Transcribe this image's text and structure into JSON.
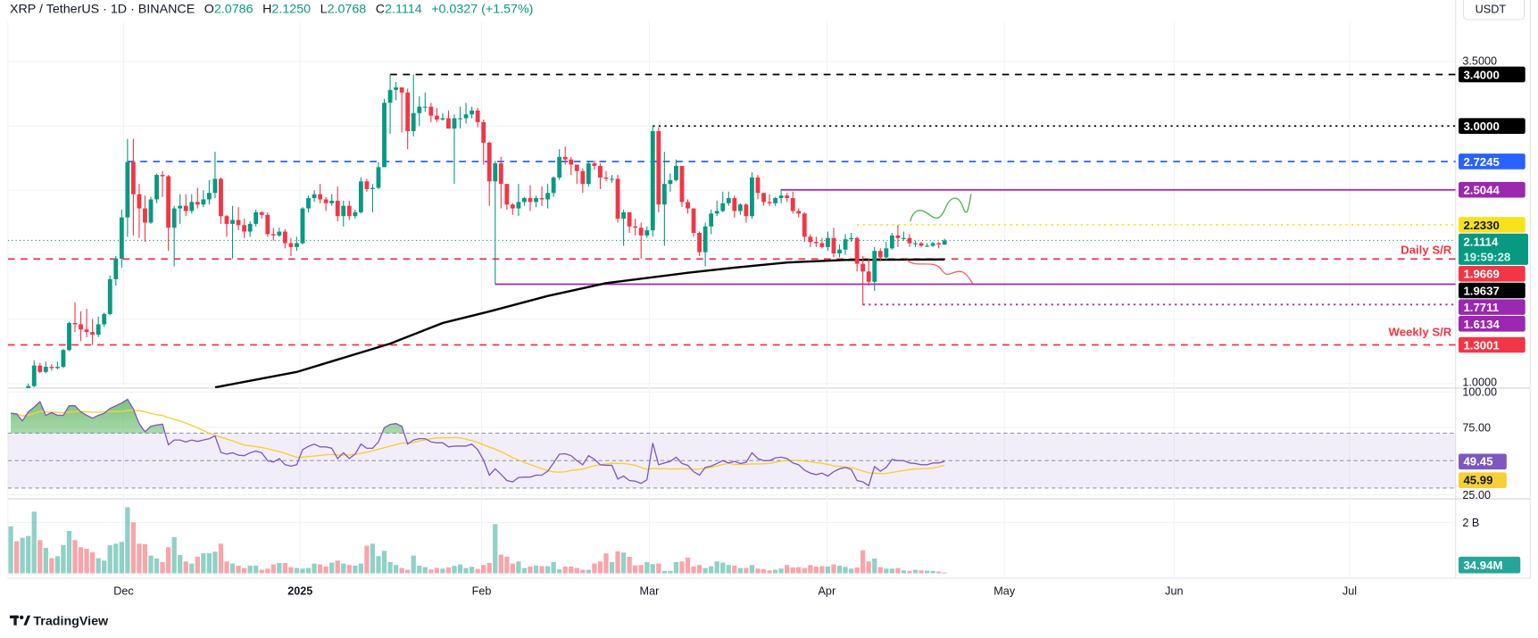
{
  "header": {
    "symbol": "XRP / TetherUS · 1D · BINANCE",
    "open_label": "O",
    "open": "2.0786",
    "high_label": "H",
    "high": "2.1250",
    "low_label": "L",
    "low": "2.0768",
    "close_label": "C",
    "close": "2.1114",
    "change": "+0.0327 (+1.57%)"
  },
  "currency_button": "USDT",
  "price_axis": {
    "top_label": "3.5000",
    "bottom_label": "1.0000"
  },
  "rsi_axis": {
    "top": "100.00",
    "upper": "75.00",
    "lower": "25.00"
  },
  "volume_axis": {
    "label": "2 B",
    "last_volume": "34.94M"
  },
  "time_axis": [
    "Dec",
    "2025",
    "Feb",
    "Mar",
    "Apr",
    "May",
    "Jun",
    "Jul"
  ],
  "annotations": {
    "daily_sr": "Daily S/R",
    "weekly_sr": "Weekly S/R"
  },
  "current_price": {
    "value": "2.1114",
    "countdown": "19:59:28",
    "color": "#089981"
  },
  "rsi_tags": {
    "rsi": "49.45",
    "rsi_ma": "45.99"
  },
  "footer": {
    "brand": "TradingView"
  },
  "colors": {
    "up": "#089981",
    "down": "#f23645",
    "rsi": "#7e57c2",
    "rsi_ma": "#f7d038",
    "sma": "#000000"
  },
  "chart_data": {
    "type": "candlestick",
    "title": "XRP / TetherUS · 1D · BINANCE",
    "ylabel": "USDT",
    "ylim": [
      1.0,
      3.5
    ],
    "x_ticks": [
      "Dec",
      "2025",
      "Feb",
      "Mar",
      "Apr",
      "May",
      "Jun",
      "Jul"
    ],
    "candles_ohlc": [
      [
        0.62,
        0.78,
        0.6,
        0.73
      ],
      [
        0.73,
        0.8,
        0.68,
        0.72
      ],
      [
        0.72,
        0.82,
        0.7,
        0.8
      ],
      [
        0.8,
        1.0,
        0.78,
        0.98
      ],
      [
        0.98,
        1.18,
        0.97,
        1.14
      ],
      [
        1.14,
        1.16,
        1.08,
        1.09
      ],
      [
        1.09,
        1.17,
        1.08,
        1.13
      ],
      [
        1.13,
        1.15,
        1.1,
        1.12
      ],
      [
        1.12,
        1.17,
        1.11,
        1.13
      ],
      [
        1.13,
        1.27,
        1.12,
        1.26
      ],
      [
        1.26,
        1.48,
        1.25,
        1.47
      ],
      [
        1.47,
        1.63,
        1.4,
        1.46
      ],
      [
        1.46,
        1.56,
        1.33,
        1.42
      ],
      [
        1.42,
        1.58,
        1.36,
        1.4
      ],
      [
        1.4,
        1.5,
        1.3,
        1.38
      ],
      [
        1.38,
        1.52,
        1.36,
        1.46
      ],
      [
        1.46,
        1.55,
        1.44,
        1.54
      ],
      [
        1.54,
        1.84,
        1.53,
        1.81
      ],
      [
        1.81,
        1.99,
        1.76,
        1.97
      ],
      [
        1.97,
        2.35,
        1.9,
        2.29
      ],
      [
        2.29,
        2.9,
        2.14,
        2.72
      ],
      [
        2.72,
        2.9,
        2.15,
        2.47
      ],
      [
        2.47,
        2.55,
        2.13,
        2.36
      ],
      [
        2.36,
        2.46,
        2.1,
        2.25
      ],
      [
        2.25,
        2.45,
        2.24,
        2.43
      ],
      [
        2.43,
        2.63,
        2.4,
        2.62
      ],
      [
        2.62,
        2.65,
        2.45,
        2.61
      ],
      [
        2.61,
        2.62,
        2.03,
        2.21
      ],
      [
        2.21,
        2.38,
        1.91,
        2.36
      ],
      [
        2.36,
        2.47,
        2.24,
        2.38
      ],
      [
        2.38,
        2.47,
        2.3,
        2.34
      ],
      [
        2.34,
        2.47,
        2.32,
        2.41
      ],
      [
        2.41,
        2.52,
        2.36,
        2.39
      ],
      [
        2.39,
        2.5,
        2.37,
        2.43
      ],
      [
        2.43,
        2.58,
        2.39,
        2.48
      ],
      [
        2.48,
        2.8,
        2.44,
        2.59
      ],
      [
        2.59,
        2.6,
        2.24,
        2.3
      ],
      [
        2.3,
        2.31,
        2.14,
        2.24
      ],
      [
        2.24,
        2.38,
        1.97,
        2.27
      ],
      [
        2.27,
        2.37,
        2.19,
        2.23
      ],
      [
        2.23,
        2.28,
        2.13,
        2.18
      ],
      [
        2.18,
        2.26,
        2.14,
        2.24
      ],
      [
        2.24,
        2.35,
        2.22,
        2.33
      ],
      [
        2.33,
        2.34,
        2.28,
        2.31
      ],
      [
        2.31,
        2.33,
        2.14,
        2.16
      ],
      [
        2.16,
        2.21,
        2.11,
        2.15
      ],
      [
        2.15,
        2.21,
        2.14,
        2.18
      ],
      [
        2.18,
        2.2,
        2.05,
        2.09
      ],
      [
        2.09,
        2.13,
        1.99,
        2.06
      ],
      [
        2.06,
        2.14,
        2.03,
        2.09
      ],
      [
        2.09,
        2.37,
        2.08,
        2.36
      ],
      [
        2.36,
        2.46,
        2.33,
        2.44
      ],
      [
        2.44,
        2.5,
        2.41,
        2.47
      ],
      [
        2.47,
        2.55,
        2.4,
        2.43
      ],
      [
        2.43,
        2.45,
        2.34,
        2.4
      ],
      [
        2.4,
        2.47,
        2.38,
        2.42
      ],
      [
        2.42,
        2.53,
        2.26,
        2.3
      ],
      [
        2.3,
        2.42,
        2.22,
        2.38
      ],
      [
        2.38,
        2.42,
        2.27,
        2.3
      ],
      [
        2.3,
        2.35,
        2.28,
        2.33
      ],
      [
        2.33,
        2.6,
        2.32,
        2.57
      ],
      [
        2.57,
        2.59,
        2.49,
        2.51
      ],
      [
        2.51,
        2.55,
        2.33,
        2.52
      ],
      [
        2.52,
        2.72,
        2.51,
        2.68
      ],
      [
        2.68,
        3.21,
        2.68,
        3.18
      ],
      [
        3.18,
        3.4,
        2.94,
        3.28
      ],
      [
        3.28,
        3.34,
        3.2,
        3.3
      ],
      [
        3.3,
        3.3,
        2.95,
        3.26
      ],
      [
        3.26,
        3.29,
        2.82,
        2.96
      ],
      [
        2.96,
        3.4,
        2.92,
        3.1
      ],
      [
        3.1,
        3.23,
        3.0,
        3.15
      ],
      [
        3.15,
        3.26,
        3.11,
        3.15
      ],
      [
        3.15,
        3.18,
        3.03,
        3.08
      ],
      [
        3.08,
        3.14,
        3.03,
        3.05
      ],
      [
        3.05,
        3.1,
        3.04,
        3.06
      ],
      [
        3.06,
        3.12,
        2.98,
        2.98
      ],
      [
        2.98,
        3.09,
        2.55,
        3.06
      ],
      [
        3.06,
        3.15,
        2.98,
        3.06
      ],
      [
        3.06,
        3.18,
        3.02,
        3.09
      ],
      [
        3.09,
        3.15,
        3.06,
        3.12
      ],
      [
        3.12,
        3.14,
        2.99,
        3.03
      ],
      [
        3.03,
        3.05,
        2.7,
        2.87
      ],
      [
        2.87,
        2.88,
        2.38,
        2.57
      ],
      [
        2.57,
        2.73,
        1.77,
        2.71
      ],
      [
        2.71,
        2.76,
        2.36,
        2.55
      ],
      [
        2.55,
        2.55,
        2.35,
        2.39
      ],
      [
        2.39,
        2.4,
        2.31,
        2.36
      ],
      [
        2.36,
        2.55,
        2.3,
        2.41
      ],
      [
        2.41,
        2.45,
        2.38,
        2.44
      ],
      [
        2.44,
        2.54,
        2.34,
        2.41
      ],
      [
        2.41,
        2.46,
        2.37,
        2.44
      ],
      [
        2.44,
        2.53,
        2.38,
        2.43
      ],
      [
        2.43,
        2.55,
        2.36,
        2.48
      ],
      [
        2.48,
        2.61,
        2.45,
        2.6
      ],
      [
        2.6,
        2.82,
        2.58,
        2.76
      ],
      [
        2.76,
        2.84,
        2.7,
        2.74
      ],
      [
        2.74,
        2.76,
        2.62,
        2.7
      ],
      [
        2.7,
        2.7,
        2.55,
        2.65
      ],
      [
        2.65,
        2.67,
        2.48,
        2.55
      ],
      [
        2.55,
        2.73,
        2.53,
        2.71
      ],
      [
        2.71,
        2.73,
        2.66,
        2.69
      ],
      [
        2.69,
        2.71,
        2.51,
        2.6
      ],
      [
        2.6,
        2.65,
        2.57,
        2.59
      ],
      [
        2.59,
        2.62,
        2.56,
        2.59
      ],
      [
        2.59,
        2.62,
        2.25,
        2.28
      ],
      [
        2.28,
        2.35,
        2.07,
        2.33
      ],
      [
        2.33,
        2.33,
        2.17,
        2.22
      ],
      [
        2.22,
        2.28,
        2.15,
        2.21
      ],
      [
        2.21,
        2.25,
        1.97,
        2.15
      ],
      [
        2.15,
        2.22,
        2.13,
        2.19
      ],
      [
        2.19,
        3.0,
        2.14,
        2.96
      ],
      [
        2.96,
        2.99,
        2.33,
        2.39
      ],
      [
        2.39,
        2.8,
        2.07,
        2.55
      ],
      [
        2.55,
        2.63,
        2.49,
        2.58
      ],
      [
        2.58,
        2.74,
        2.57,
        2.69
      ],
      [
        2.69,
        2.69,
        2.37,
        2.41
      ],
      [
        2.41,
        2.43,
        2.32,
        2.36
      ],
      [
        2.36,
        2.36,
        2.14,
        2.17
      ],
      [
        2.17,
        2.18,
        1.99,
        2.02
      ],
      [
        2.02,
        2.25,
        1.91,
        2.22
      ],
      [
        2.22,
        2.35,
        2.16,
        2.32
      ],
      [
        2.32,
        2.42,
        2.3,
        2.34
      ],
      [
        2.34,
        2.49,
        2.33,
        2.4
      ],
      [
        2.4,
        2.49,
        2.38,
        2.44
      ],
      [
        2.44,
        2.46,
        2.29,
        2.34
      ],
      [
        2.34,
        2.4,
        2.31,
        2.39
      ],
      [
        2.39,
        2.4,
        2.25,
        2.3
      ],
      [
        2.3,
        2.64,
        2.28,
        2.6
      ],
      [
        2.6,
        2.62,
        2.43,
        2.48
      ],
      [
        2.48,
        2.47,
        2.38,
        2.41
      ],
      [
        2.41,
        2.47,
        2.38,
        2.4
      ],
      [
        2.4,
        2.45,
        2.38,
        2.44
      ],
      [
        2.44,
        2.51,
        2.4,
        2.46
      ],
      [
        2.46,
        2.48,
        2.41,
        2.44
      ],
      [
        2.44,
        2.49,
        2.32,
        2.34
      ],
      [
        2.34,
        2.36,
        2.29,
        2.32
      ],
      [
        2.32,
        2.33,
        2.1,
        2.14
      ],
      [
        2.14,
        2.16,
        2.06,
        2.1
      ],
      [
        2.1,
        2.14,
        2.06,
        2.09
      ],
      [
        2.09,
        2.13,
        2.05,
        2.06
      ],
      [
        2.06,
        2.18,
        2.03,
        2.13
      ],
      [
        2.13,
        2.21,
        1.98,
        2.01
      ],
      [
        2.01,
        2.08,
        1.98,
        2.04
      ],
      [
        2.04,
        2.16,
        2.0,
        2.12
      ],
      [
        2.12,
        2.17,
        2.1,
        2.13
      ],
      [
        2.13,
        2.14,
        1.87,
        1.93
      ],
      [
        1.93,
        1.99,
        1.61,
        1.87
      ],
      [
        1.87,
        1.97,
        1.76,
        1.79
      ],
      [
        1.79,
        2.06,
        1.72,
        2.03
      ],
      [
        2.03,
        2.05,
        1.95,
        1.98
      ],
      [
        1.98,
        2.1,
        1.96,
        2.05
      ],
      [
        2.05,
        2.17,
        2.04,
        2.15
      ],
      [
        2.15,
        2.23,
        2.06,
        2.13
      ],
      [
        2.13,
        2.18,
        2.11,
        2.13
      ],
      [
        2.13,
        2.16,
        2.06,
        2.09
      ],
      [
        2.09,
        2.11,
        2.06,
        2.09
      ],
      [
        2.09,
        2.1,
        2.06,
        2.07
      ],
      [
        2.07,
        2.09,
        2.06,
        2.07
      ],
      [
        2.07,
        2.1,
        2.06,
        2.09
      ],
      [
        2.09,
        2.1,
        2.05,
        2.08
      ],
      [
        2.0786,
        2.125,
        2.0768,
        2.1114
      ]
    ],
    "volume_millions": [
      1770,
      1210,
      1344,
      1411,
      2330,
      1254,
      963,
      571,
      650,
      1064,
      1602,
      1254,
      986,
      930,
      795,
      571,
      482,
      1064,
      1120,
      1187,
      2498,
      1926,
      1120,
      1098,
      672,
      560,
      426,
      986,
      1366,
      694,
      448,
      370,
      627,
      762,
      762,
      818,
      1120,
      448,
      370,
      291,
      202,
      291,
      291,
      134,
      179,
      336,
      392,
      392,
      235,
      202,
      179,
      202,
      370,
      336,
      258,
      403,
      482,
      370,
      314,
      291,
      370,
      1042,
      1120,
      650,
      851,
      426,
      314,
      202,
      134,
      672,
      291,
      235,
      146,
      202,
      179,
      224,
      280,
      336,
      202,
      246,
      168,
      314,
      392,
      1859,
      706,
      627,
      370,
      448,
      202,
      258,
      291,
      269,
      269,
      426,
      146,
      258,
      258,
      202,
      134,
      134,
      370,
      448,
      750,
      426,
      829,
      784,
      627,
      302,
      314,
      426,
      347,
      370,
      90,
      90,
      426,
      448,
      594,
      258,
      314,
      202,
      269,
      448,
      403,
      314,
      291,
      202,
      202,
      314,
      179,
      157,
      112,
      134,
      179,
      314,
      224,
      235,
      202,
      314,
      258,
      269,
      258,
      336,
      291,
      246,
      179,
      224,
      874,
      448,
      560,
      235,
      179,
      179,
      202,
      112,
      90,
      134,
      112,
      101,
      90,
      67,
      34.94
    ],
    "rsi": [
      84.5,
      84,
      79,
      85.5,
      89,
      93,
      83,
      85,
      83,
      83,
      90,
      90,
      85.5,
      83,
      81,
      83,
      84.5,
      88,
      90,
      92,
      94.7,
      87.6,
      77,
      71,
      75,
      76,
      76.6,
      61.5,
      65,
      65,
      63.6,
      65,
      64,
      65,
      66,
      68,
      56,
      54.7,
      55.7,
      54,
      53.6,
      55.7,
      57,
      55.7,
      50,
      49,
      51.5,
      47,
      46,
      47,
      58,
      60.4,
      62,
      60,
      60,
      59,
      51.5,
      55.7,
      51.5,
      54.7,
      62,
      59,
      59,
      63.6,
      74,
      76.4,
      77,
      75,
      62,
      65,
      66,
      66,
      63.6,
      63,
      63,
      60,
      60.6,
      60.6,
      60.6,
      62,
      58,
      50.4,
      39.4,
      44,
      40,
      35.5,
      34.5,
      37.7,
      38,
      38,
      39.4,
      39.4,
      42.3,
      48.3,
      54.7,
      55,
      53.6,
      50,
      47,
      53.6,
      50.9,
      47,
      46.6,
      46.6,
      36.6,
      38.7,
      35.5,
      35,
      33.4,
      36,
      62.8,
      47,
      48.3,
      49.4,
      52.5,
      47.9,
      46.6,
      41.9,
      39.4,
      45,
      46,
      47.9,
      50,
      48.3,
      49.4,
      47.9,
      48.7,
      55.7,
      51.5,
      50,
      50,
      52,
      52.5,
      51.5,
      48.3,
      47,
      43,
      40.9,
      39.8,
      40.9,
      38.7,
      41.9,
      44,
      45,
      43.6,
      35.5,
      34.5,
      31.7,
      45.7,
      42.3,
      45,
      50.9,
      50,
      50,
      48.3,
      47.9,
      47,
      47,
      48.3,
      48.3,
      49.45
    ],
    "rsi_bands": [
      70,
      50,
      30
    ],
    "sma200": [
      [
        35,
        0.97
      ],
      [
        49,
        1.09
      ],
      [
        65,
        1.31
      ],
      [
        74,
        1.47
      ],
      [
        82,
        1.56
      ],
      [
        92,
        1.68
      ],
      [
        102,
        1.78
      ],
      [
        116,
        1.86
      ],
      [
        124,
        1.9
      ],
      [
        133,
        1.94
      ],
      [
        143,
        1.96
      ],
      [
        160,
        1.9637
      ]
    ],
    "levels": [
      {
        "value": "3.4000",
        "color": "#000000",
        "style": "dashed",
        "start_index": 65
      },
      {
        "value": "3.0000",
        "color": "#000000",
        "style": "dotted",
        "start_index": 110
      },
      {
        "value": "2.7245",
        "color": "#2962ff",
        "style": "dashed",
        "start_index": 20
      },
      {
        "value": "2.5044",
        "color": "#9c27b0",
        "style": "solid",
        "start_index": 132
      },
      {
        "value": "2.2330",
        "color": "#f7e21b",
        "style": "dotted",
        "start_index": 145,
        "text_color": "#131722"
      },
      {
        "value": "1.9669",
        "color": "#f23645",
        "style": "dashed",
        "start_index": -1
      },
      {
        "value": "1.9637",
        "color": "#000000",
        "style": "none",
        "start_index": 160
      },
      {
        "value": "1.7711",
        "color": "#9c27b0",
        "style": "solid",
        "start_index": 83
      },
      {
        "value": "1.6134",
        "color": "#9c27b0",
        "style": "dotted",
        "start_index": 146
      },
      {
        "value": "1.3001",
        "color": "#f23645",
        "style": "dashed",
        "start_index": -1
      }
    ]
  }
}
